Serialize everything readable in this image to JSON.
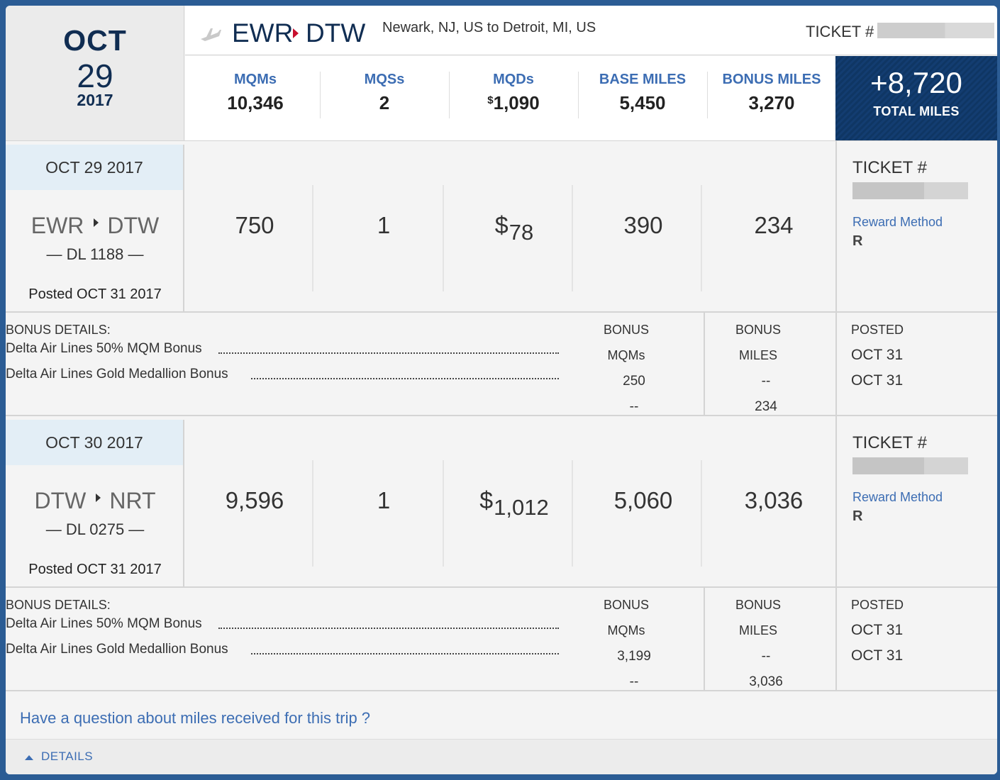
{
  "header": {
    "date": {
      "month": "OCT",
      "day": "29",
      "year": "2017"
    },
    "route": {
      "from": "EWR",
      "to": "DTW",
      "description": "Newark, NJ, US to Detroit, MI, US"
    },
    "ticket_label": "TICKET #",
    "stats": [
      {
        "label": "MQMs",
        "value": "10,346"
      },
      {
        "label": "MQSs",
        "value": "2"
      },
      {
        "label": "MQDs",
        "currency": "$",
        "value": "1,090"
      },
      {
        "label": "BASE MILES",
        "value": "5,450"
      },
      {
        "label": "BONUS MILES",
        "value": "3,270"
      }
    ],
    "total": {
      "value": "+8,720",
      "label": "TOTAL MILES"
    }
  },
  "segments": [
    {
      "date": "OCT 29 2017",
      "from": "EWR",
      "to": "DTW",
      "flight": "— DL 1188 —",
      "posted": "Posted OCT 31 2017",
      "mqm": "750",
      "mqs": "1",
      "mqd_currency": "$",
      "mqd": "78",
      "base": "390",
      "bonus": "234",
      "ticket_label": "TICKET #",
      "reward_method_label": "Reward Method",
      "reward_method": "R",
      "bonus_details": {
        "title": "BONUS DETAILS:",
        "col_mqm_label_1": "BONUS",
        "col_mqm_label_2": "MQMs",
        "col_miles_label_1": "BONUS",
        "col_miles_label_2": "MILES",
        "posted_label": "POSTED",
        "items": [
          {
            "name": "Delta Air Lines 50% MQM Bonus",
            "mqm": "250",
            "miles": "--",
            "posted": "OCT 31"
          },
          {
            "name": "Delta Air Lines Gold Medallion Bonus",
            "mqm": "--",
            "miles": "234",
            "posted": "OCT 31"
          }
        ]
      }
    },
    {
      "date": "OCT 30 2017",
      "from": "DTW",
      "to": "NRT",
      "flight": "— DL 0275 —",
      "posted": "Posted OCT 31 2017",
      "mqm": "9,596",
      "mqs": "1",
      "mqd_currency": "$",
      "mqd": "1,012",
      "base": "5,060",
      "bonus": "3,036",
      "ticket_label": "TICKET #",
      "reward_method_label": "Reward Method",
      "reward_method": "R",
      "bonus_details": {
        "title": "BONUS DETAILS:",
        "col_mqm_label_1": "BONUS",
        "col_mqm_label_2": "MQMs",
        "col_miles_label_1": "BONUS",
        "col_miles_label_2": "MILES",
        "posted_label": "POSTED",
        "items": [
          {
            "name": "Delta Air Lines 50% MQM Bonus",
            "mqm": "3,199",
            "miles": "--",
            "posted": "OCT 31"
          },
          {
            "name": "Delta Air Lines Gold Medallion Bonus",
            "mqm": "--",
            "miles": "3,036",
            "posted": "OCT 31"
          }
        ]
      }
    }
  ],
  "question_link": "Have a question about miles received for this trip ?",
  "details_toggle": "DETAILS",
  "icons": [
    "plane-icon",
    "route-arrow-icon",
    "chevron-up-icon"
  ],
  "colors": {
    "brand_navy": "#102d52",
    "link_blue": "#3c6db3",
    "accent_red": "#c8102e",
    "total_bg": "#0f3664"
  }
}
